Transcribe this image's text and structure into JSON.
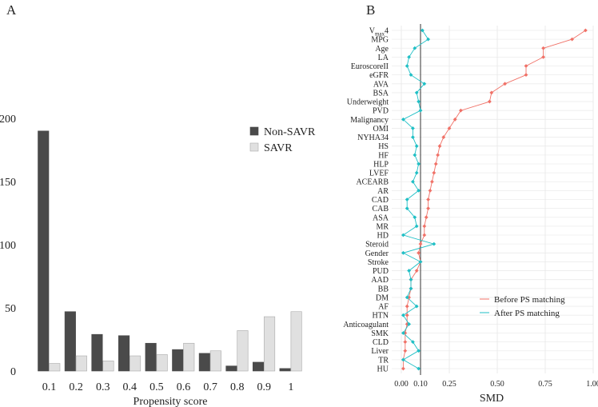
{
  "chart_data": [
    {
      "panel": "A",
      "type": "bar",
      "xlabel": "Propensity score",
      "ylabel": "",
      "ylim": [
        0,
        200
      ],
      "yticks": [
        0,
        50,
        100,
        150,
        200
      ],
      "categories": [
        "0.1",
        "0.2",
        "0.3",
        "0.4",
        "0.5",
        "0.6",
        "0.7",
        "0.8",
        "0.9",
        "1"
      ],
      "series": [
        {
          "name": "Non-SAVR",
          "color": "#4a4a4a",
          "values": [
            190,
            47,
            29,
            28,
            22,
            17,
            14,
            4,
            7,
            2
          ]
        },
        {
          "name": "SAVR",
          "color": "#e0e0e0",
          "values": [
            6,
            12,
            8,
            12,
            13,
            22,
            16,
            32,
            43,
            47
          ]
        }
      ],
      "legend_position": "top-right"
    },
    {
      "panel": "B",
      "type": "scatter",
      "xlabel": "SMD",
      "xlim": [
        -0.05,
        1.0
      ],
      "xticks": [
        "0.00",
        "0.10",
        "0.25",
        "0.50",
        "0.75",
        "1.00"
      ],
      "xtick_values": [
        0,
        0.1,
        0.25,
        0.5,
        0.75,
        1.0
      ],
      "reference_line": 0.1,
      "covariates": [
        {
          "label": "V",
          "sub": "max",
          "suffix": "4"
        },
        {
          "label": "MPG"
        },
        {
          "label": "Age"
        },
        {
          "label": "LA"
        },
        {
          "label": "EuroscoreII"
        },
        {
          "label": "eGFR"
        },
        {
          "label": "AVA"
        },
        {
          "label": "BSA"
        },
        {
          "label": "Underweight"
        },
        {
          "label": "PVD"
        },
        {
          "label": "Malignancy"
        },
        {
          "label": "OMI"
        },
        {
          "label": "NYHA34"
        },
        {
          "label": "HS"
        },
        {
          "label": "HF"
        },
        {
          "label": "HLP"
        },
        {
          "label": "LVEF"
        },
        {
          "label": "ACEARB"
        },
        {
          "label": "AR"
        },
        {
          "label": "CAD"
        },
        {
          "label": "CAB"
        },
        {
          "label": "ASA"
        },
        {
          "label": "MR"
        },
        {
          "label": "HD"
        },
        {
          "label": "Steroid"
        },
        {
          "label": "Gender"
        },
        {
          "label": "Stroke"
        },
        {
          "label": "PUD"
        },
        {
          "label": "AAD"
        },
        {
          "label": "BB"
        },
        {
          "label": "DM"
        },
        {
          "label": "AF"
        },
        {
          "label": "HTN"
        },
        {
          "label": "Anticoagulant"
        },
        {
          "label": "SMK"
        },
        {
          "label": "CLD"
        },
        {
          "label": "Liver"
        },
        {
          "label": "TR"
        },
        {
          "label": "HU"
        }
      ],
      "series": [
        {
          "name": "Before PS matching",
          "color": "#f07167",
          "values": [
            0.96,
            0.89,
            0.74,
            0.74,
            0.65,
            0.65,
            0.54,
            0.47,
            0.46,
            0.31,
            0.28,
            0.25,
            0.22,
            0.2,
            0.19,
            0.18,
            0.17,
            0.16,
            0.15,
            0.14,
            0.14,
            0.13,
            0.12,
            0.12,
            0.1,
            0.09,
            0.1,
            0.08,
            0.05,
            0.05,
            0.04,
            0.03,
            0.03,
            0.03,
            0.02,
            0.02,
            0.02,
            0.01,
            0.01
          ]
        },
        {
          "name": "After PS matching",
          "color": "#1fbfc5",
          "values": [
            0.11,
            0.14,
            0.07,
            0.04,
            0.03,
            0.05,
            0.12,
            0.08,
            0.09,
            0.1,
            0.01,
            0.06,
            0.06,
            0.08,
            0.07,
            0.09,
            0.08,
            0.06,
            0.09,
            0.03,
            0.03,
            0.07,
            0.08,
            0.01,
            0.17,
            0.01,
            0.1,
            0.04,
            0.05,
            0.05,
            0.03,
            0.08,
            0.01,
            0.04,
            0.01,
            0.06,
            0.09,
            0.01,
            0.09
          ]
        }
      ],
      "legend_position": "bottom-right"
    }
  ],
  "panel_labels": {
    "a": "A",
    "b": "B"
  }
}
